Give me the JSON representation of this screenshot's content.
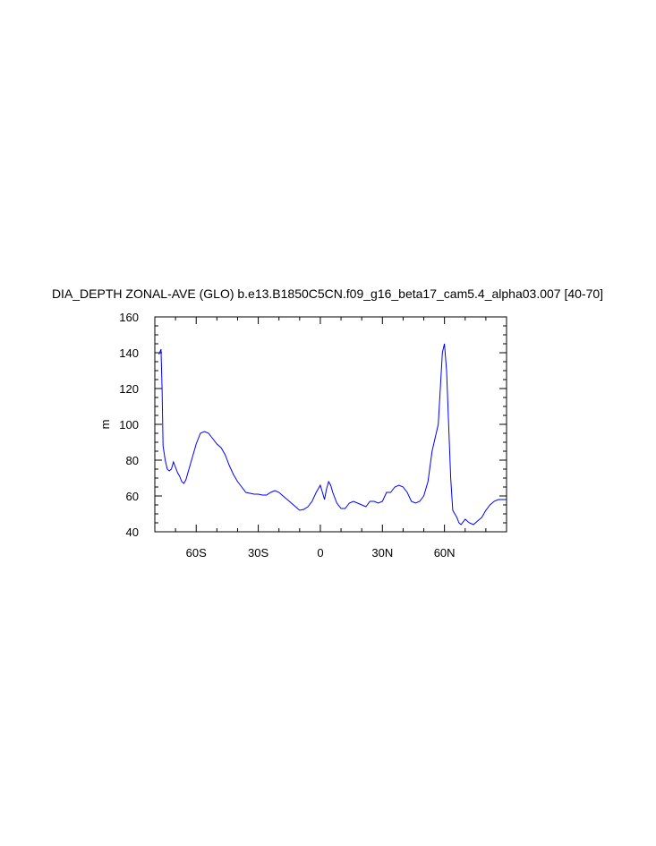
{
  "chart_data": {
    "type": "line",
    "title": "DIA_DEPTH ZONAL-AVE (GLO) b.e13.B1850C5CN.f09_g16_beta17_cam5.4_alpha03.007 [40-70]",
    "xlabel": "",
    "ylabel": "m",
    "xlim": [
      -80,
      90
    ],
    "ylim": [
      40,
      160
    ],
    "x_ticks": [
      -60,
      -30,
      0,
      30,
      60
    ],
    "x_tick_labels": [
      "60S",
      "30S",
      "0",
      "30N",
      "60N"
    ],
    "y_ticks": [
      40,
      60,
      80,
      100,
      120,
      140,
      160
    ],
    "y_tick_labels": [
      "40",
      "60",
      "80",
      "100",
      "120",
      "140",
      "160"
    ],
    "grid": false,
    "line_color": "#0000ff",
    "series": [
      {
        "x": [
          -78,
          -77,
          -76.5,
          -76,
          -75.5,
          -75,
          -74,
          -73,
          -72,
          -71,
          -70,
          -69,
          -68,
          -67,
          -66,
          -65,
          -64,
          -62,
          -60,
          -58,
          -56,
          -54,
          -52,
          -50,
          -48,
          -46,
          -44,
          -42,
          -40,
          -38,
          -36,
          -34,
          -32,
          -30,
          -28,
          -26,
          -24,
          -22,
          -20,
          -18,
          -16,
          -14,
          -12,
          -10,
          -8,
          -6,
          -4,
          -2,
          0,
          1,
          2,
          3,
          4,
          5,
          6,
          8,
          10,
          12,
          14,
          16,
          18,
          20,
          22,
          24,
          26,
          28,
          30,
          32,
          34,
          36,
          38,
          40,
          42,
          44,
          46,
          48,
          50,
          52,
          54,
          56,
          57,
          58,
          59,
          60,
          61,
          62,
          63,
          64,
          65,
          66,
          67,
          68,
          70,
          72,
          74,
          76,
          78,
          80,
          82,
          84,
          86,
          88,
          90
        ],
        "y": [
          139,
          142,
          120,
          88,
          84,
          80,
          75,
          74,
          75,
          79,
          76,
          73,
          71,
          68,
          67,
          69,
          73,
          81,
          89,
          95,
          96,
          95,
          92,
          89,
          87,
          83,
          77,
          72,
          68,
          65,
          62,
          61.5,
          61,
          61,
          60.5,
          60.5,
          62,
          63,
          62,
          60,
          58,
          56,
          54,
          52,
          52.5,
          54,
          57,
          62,
          66,
          62,
          58,
          64,
          68,
          66,
          62,
          56,
          53,
          53,
          56,
          57,
          56,
          55,
          54,
          57,
          57,
          56,
          57,
          62,
          62,
          65,
          66,
          65,
          62,
          57,
          56,
          57,
          60,
          68,
          85,
          95,
          100,
          120,
          140,
          145,
          130,
          100,
          70,
          52,
          50,
          48,
          45,
          44,
          47,
          45,
          44,
          46,
          48,
          52,
          55,
          57,
          58,
          58,
          58
        ]
      }
    ]
  }
}
